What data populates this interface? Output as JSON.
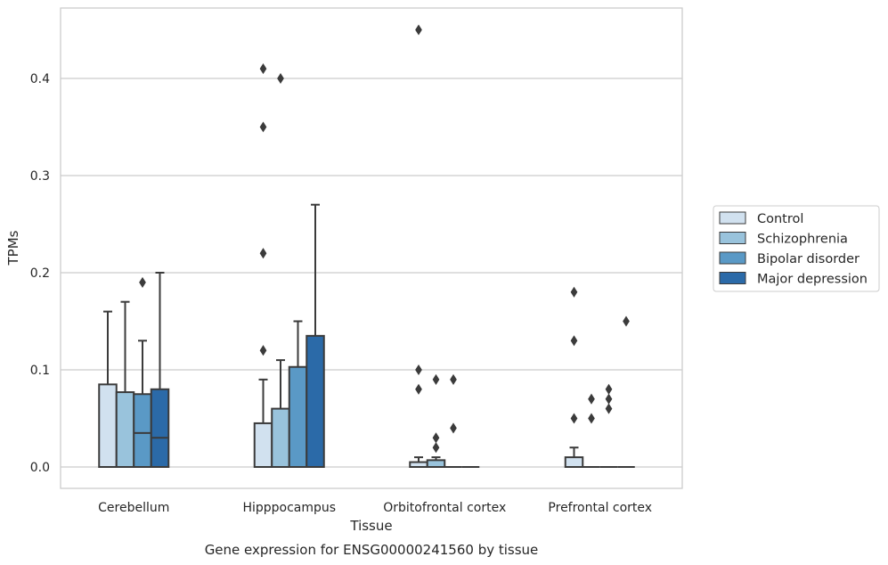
{
  "chart_data": {
    "type": "box",
    "title": "Gene expression for ENSG00000241560 by tissue",
    "xlabel": "Tissue",
    "ylabel": "TPMs",
    "ylim": [
      -0.022,
      0.476
    ],
    "yticks": [
      "0.0",
      "0.1",
      "0.2",
      "0.3",
      "0.4"
    ],
    "grid": true,
    "legend_position": "right",
    "categories": [
      "Cerebellum",
      "Hipppocampus",
      "Orbitofrontal cortex",
      "Prefrontal cortex"
    ],
    "series": [
      {
        "name": "Control",
        "color": "#d1e1ef",
        "boxes": [
          {
            "q1": 0.0,
            "median": 0.0,
            "q3": 0.085,
            "whisker_low": 0.0,
            "whisker_high": 0.16,
            "outliers": []
          },
          {
            "q1": 0.0,
            "median": 0.0,
            "q3": 0.045,
            "whisker_low": 0.0,
            "whisker_high": 0.09,
            "outliers": [
              0.12,
              0.22,
              0.35,
              0.41
            ]
          },
          {
            "q1": 0.0,
            "median": 0.0,
            "q3": 0.005,
            "whisker_low": 0.0,
            "whisker_high": 0.01,
            "outliers": [
              0.08,
              0.1,
              0.45
            ]
          },
          {
            "q1": 0.0,
            "median": 0.0,
            "q3": 0.01,
            "whisker_low": 0.0,
            "whisker_high": 0.02,
            "outliers": [
              0.05,
              0.13,
              0.18
            ]
          }
        ]
      },
      {
        "name": "Schizophrenia",
        "color": "#99c3dc",
        "boxes": [
          {
            "q1": 0.0,
            "median": 0.0,
            "q3": 0.077,
            "whisker_low": 0.0,
            "whisker_high": 0.17,
            "outliers": []
          },
          {
            "q1": 0.0,
            "median": 0.0,
            "q3": 0.06,
            "whisker_low": 0.0,
            "whisker_high": 0.11,
            "outliers": [
              0.4
            ]
          },
          {
            "q1": 0.0,
            "median": 0.0,
            "q3": 0.007,
            "whisker_low": 0.0,
            "whisker_high": 0.01,
            "outliers": [
              0.02,
              0.03,
              0.09
            ]
          },
          {
            "q1": 0.0,
            "median": 0.0,
            "q3": 0.0,
            "whisker_low": 0.0,
            "whisker_high": 0.0,
            "outliers": [
              0.05,
              0.07
            ]
          }
        ]
      },
      {
        "name": "Bipolar disorder",
        "color": "#5a99c6",
        "boxes": [
          {
            "q1": 0.0,
            "median": 0.035,
            "q3": 0.075,
            "whisker_low": 0.0,
            "whisker_high": 0.13,
            "outliers": [
              0.19
            ]
          },
          {
            "q1": 0.0,
            "median": 0.0,
            "q3": 0.103,
            "whisker_low": 0.0,
            "whisker_high": 0.15,
            "outliers": []
          },
          {
            "q1": 0.0,
            "median": 0.0,
            "q3": 0.0,
            "whisker_low": 0.0,
            "whisker_high": 0.0,
            "outliers": [
              0.04,
              0.09
            ]
          },
          {
            "q1": 0.0,
            "median": 0.0,
            "q3": 0.0,
            "whisker_low": 0.0,
            "whisker_high": 0.0,
            "outliers": [
              0.06,
              0.07,
              0.08
            ]
          }
        ]
      },
      {
        "name": "Major depression",
        "color": "#2b6aa8",
        "boxes": [
          {
            "q1": 0.0,
            "median": 0.03,
            "q3": 0.08,
            "whisker_low": 0.0,
            "whisker_high": 0.2,
            "outliers": []
          },
          {
            "q1": 0.0,
            "median": 0.0,
            "q3": 0.135,
            "whisker_low": 0.0,
            "whisker_high": 0.27,
            "outliers": []
          },
          {
            "q1": 0.0,
            "median": 0.0,
            "q3": 0.0,
            "whisker_low": 0.0,
            "whisker_high": 0.0,
            "outliers": []
          },
          {
            "q1": 0.0,
            "median": 0.0,
            "q3": 0.0,
            "whisker_low": 0.0,
            "whisker_high": 0.0,
            "outliers": [
              0.15
            ]
          }
        ]
      }
    ]
  },
  "colors": {
    "grid": "#cccccc",
    "frame": "#cccccc",
    "box_edge": "#3b3b3b",
    "text": "#262626"
  }
}
